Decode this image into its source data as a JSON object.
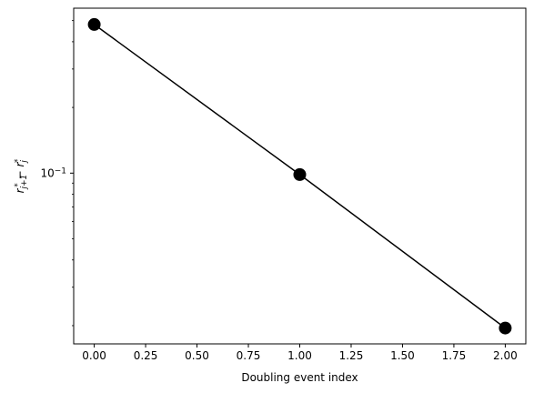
{
  "chart_data": {
    "type": "line",
    "title": "",
    "xlabel": "Doubling event index",
    "ylabel_parts": {
      "r1": "r",
      "sub1": "j+1",
      "sup1": "*",
      "minus": " − ",
      "r2": "r",
      "sub2": "j",
      "sup2": "*"
    },
    "x": [
      0,
      1,
      2
    ],
    "y": [
      0.48,
      0.0985,
      0.0195
    ],
    "xlim": [
      -0.1,
      2.1
    ],
    "ylim": [
      0.0165,
      0.57
    ],
    "y_scale": "log",
    "x_ticks": [
      0.0,
      0.25,
      0.5,
      0.75,
      1.0,
      1.25,
      1.5,
      1.75,
      2.0
    ],
    "x_tick_labels": [
      "0.00",
      "0.25",
      "0.50",
      "0.75",
      "1.00",
      "1.25",
      "1.50",
      "1.75",
      "2.00"
    ],
    "y_major_tick": 0.1,
    "y_tick_labels": [
      {
        "base": "10",
        "exp": "−1"
      }
    ],
    "y_minor_ticks": [
      0.02,
      0.03,
      0.04,
      0.05,
      0.06,
      0.07,
      0.08,
      0.09,
      0.2,
      0.3,
      0.4,
      0.5
    ],
    "grid": false,
    "legend": "none",
    "line_color": "#000000",
    "marker_color": "#000000",
    "marker": "circle"
  }
}
